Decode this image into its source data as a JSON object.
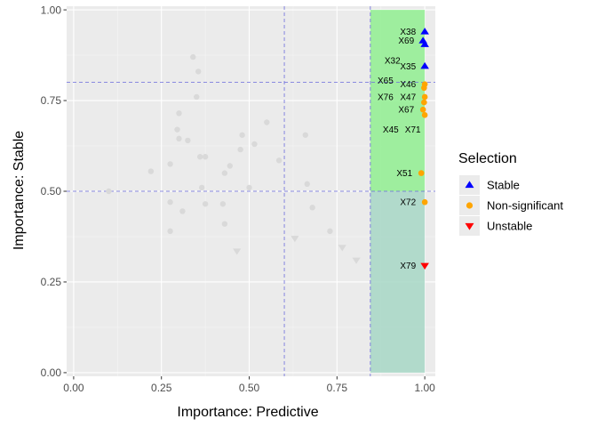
{
  "chart_data": {
    "type": "scatter",
    "xlabel": "Importance: Predictive",
    "ylabel": "Importance: Stable",
    "xlim": [
      -0.02,
      1.03
    ],
    "ylim": [
      -0.01,
      1.01
    ],
    "x_ticks": [
      "0.00",
      "0.25",
      "0.50",
      "0.75",
      "1.00"
    ],
    "y_ticks": [
      "0.00",
      "0.25",
      "0.50",
      "0.75",
      "1.00"
    ],
    "grid": true,
    "reference_lines": {
      "vertical": [
        0.6,
        0.845
      ],
      "horizontal": [
        0.8,
        0.5
      ]
    },
    "highlight_regions": [
      {
        "x": [
          0.845,
          1.0
        ],
        "y": [
          0.5,
          1.0
        ],
        "color": "#90ee90"
      },
      {
        "x": [
          0.845,
          1.0
        ],
        "y": [
          0.0,
          0.5
        ],
        "color": "#a7d7c5"
      }
    ],
    "legend": {
      "title": "Selection",
      "position": "right",
      "items": [
        {
          "label": "Stable",
          "color": "#0000ff",
          "shape": "triangle-up"
        },
        {
          "label": "Non-significant",
          "color": "#ffa500",
          "shape": "circle"
        },
        {
          "label": "Unstable",
          "color": "#ff0000",
          "shape": "triangle-down"
        }
      ]
    },
    "series": [
      {
        "name": "Stable",
        "color": "#0000ff",
        "shape": "triangle-up",
        "points": [
          {
            "x": 1.0,
            "y": 0.94,
            "label": "X38"
          },
          {
            "x": 0.995,
            "y": 0.915,
            "label": "X69"
          },
          {
            "x": 1.0,
            "y": 0.905,
            "label": ""
          },
          {
            "x": 1.0,
            "y": 0.845,
            "label": "X35"
          }
        ]
      },
      {
        "name": "Non-significant",
        "color": "#ffa500",
        "shape": "circle",
        "points": [
          {
            "x": 1.0,
            "y": 0.795,
            "label": "X46"
          },
          {
            "x": 0.998,
            "y": 0.785,
            "label": ""
          },
          {
            "x": 1.0,
            "y": 0.76,
            "label": "X47"
          },
          {
            "x": 0.998,
            "y": 0.745,
            "label": ""
          },
          {
            "x": 0.995,
            "y": 0.725,
            "label": "X67"
          },
          {
            "x": 1.0,
            "y": 0.71,
            "label": ""
          },
          {
            "x": 0.99,
            "y": 0.55,
            "label": "X51"
          },
          {
            "x": 1.0,
            "y": 0.47,
            "label": "X72"
          }
        ]
      },
      {
        "name": "Unstable",
        "color": "#ff0000",
        "shape": "triangle-down",
        "points": [
          {
            "x": 1.0,
            "y": 0.295,
            "label": "X79"
          }
        ]
      }
    ],
    "extra_labels": [
      {
        "x": 0.908,
        "y": 0.86,
        "text": "X32"
      },
      {
        "x": 0.888,
        "y": 0.805,
        "text": "X65"
      },
      {
        "x": 0.888,
        "y": 0.76,
        "text": "X76"
      },
      {
        "x": 0.903,
        "y": 0.67,
        "text": "X45"
      },
      {
        "x": 0.966,
        "y": 0.67,
        "text": "X71"
      }
    ],
    "background_points": {
      "color": "#d9d9d9",
      "circles": [
        [
          0.1,
          0.5
        ],
        [
          0.22,
          0.555
        ],
        [
          0.275,
          0.575
        ],
        [
          0.275,
          0.47
        ],
        [
          0.275,
          0.39
        ],
        [
          0.295,
          0.67
        ],
        [
          0.3,
          0.715
        ],
        [
          0.3,
          0.645
        ],
        [
          0.31,
          0.445
        ],
        [
          0.325,
          0.64
        ],
        [
          0.34,
          0.87
        ],
        [
          0.35,
          0.76
        ],
        [
          0.355,
          0.83
        ],
        [
          0.36,
          0.595
        ],
        [
          0.365,
          0.51
        ],
        [
          0.375,
          0.595
        ],
        [
          0.375,
          0.465
        ],
        [
          0.425,
          0.465
        ],
        [
          0.43,
          0.41
        ],
        [
          0.43,
          0.55
        ],
        [
          0.445,
          0.57
        ],
        [
          0.475,
          0.615
        ],
        [
          0.48,
          0.655
        ],
        [
          0.5,
          0.51
        ],
        [
          0.515,
          0.63
        ],
        [
          0.55,
          0.69
        ],
        [
          0.585,
          0.585
        ],
        [
          0.66,
          0.655
        ],
        [
          0.665,
          0.52
        ],
        [
          0.68,
          0.455
        ],
        [
          0.73,
          0.39
        ]
      ],
      "triangles_down": [
        [
          0.465,
          0.335
        ],
        [
          0.63,
          0.37
        ],
        [
          0.765,
          0.345
        ],
        [
          0.805,
          0.31
        ]
      ]
    }
  }
}
